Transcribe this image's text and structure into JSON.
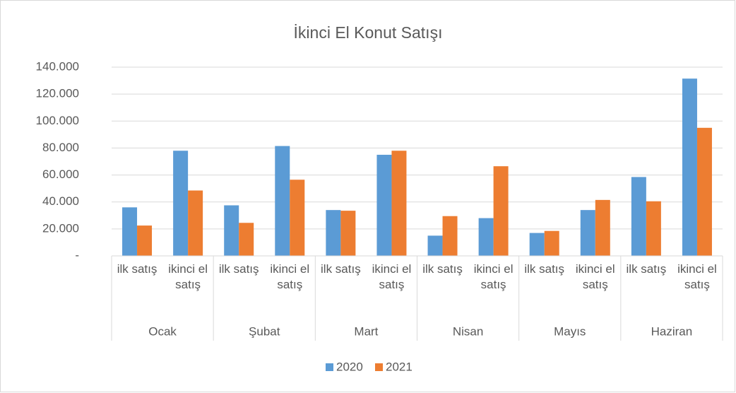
{
  "chart_data": {
    "type": "bar",
    "title": "İkinci El Konut Satışı",
    "categories": [
      "ilk satış",
      "ikinci el satış",
      "ilk satış",
      "ikinci el satış",
      "ilk satış",
      "ikinci el satış",
      "ilk satış",
      "ikinci el satış",
      "ilk satış",
      "ikinci el satış",
      "ilk satış",
      "ikinci el satış"
    ],
    "groups": [
      "Ocak",
      "Şubat",
      "Mart",
      "Nisan",
      "Mayıs",
      "Haziran"
    ],
    "series": [
      {
        "name": "2020",
        "color": "#5b9bd5",
        "values": [
          36000,
          78000,
          37500,
          81500,
          34000,
          75000,
          15000,
          28000,
          17000,
          34000,
          58500,
          131500
        ]
      },
      {
        "name": "2021",
        "color": "#ed7d31",
        "values": [
          22500,
          48500,
          24500,
          56500,
          33500,
          78000,
          29500,
          66500,
          18500,
          41500,
          40500,
          95000
        ]
      }
    ],
    "ylim": [
      0,
      140000
    ],
    "yticks": [
      {
        "value": 0,
        "label": "-"
      },
      {
        "value": 20000,
        "label": "20.000"
      },
      {
        "value": 40000,
        "label": "40.000"
      },
      {
        "value": 60000,
        "label": "60.000"
      },
      {
        "value": 80000,
        "label": "80.000"
      },
      {
        "value": 100000,
        "label": "100.000"
      },
      {
        "value": 120000,
        "label": "120.000"
      },
      {
        "value": 140000,
        "label": "140.000"
      }
    ],
    "grid": true,
    "legend": "bottom"
  }
}
